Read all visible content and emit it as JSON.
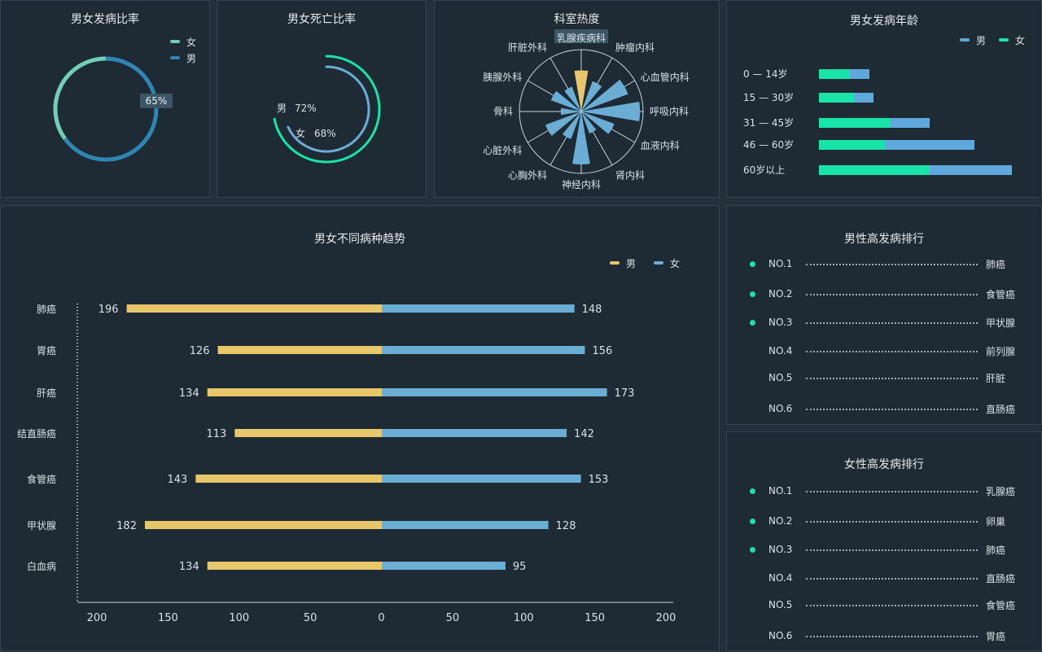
{
  "colors": {
    "male_bar": "#e8c66a",
    "female_bar": "#6aaed6",
    "teal": "#18e3a8",
    "blue": "#5fa8dc"
  },
  "ratio": {
    "title": "男女发病比率",
    "legend": [
      "女",
      "男"
    ],
    "label": "65%",
    "female_pct": 35,
    "male_pct": 65
  },
  "death": {
    "title": "男女死亡比率",
    "male_label": "男",
    "male_value": "72%",
    "male_pct": 72,
    "female_label": "女",
    "female_value": "68%",
    "female_pct": 68
  },
  "dept": {
    "title": "科室热度",
    "labels": [
      "乳腺疾病科",
      "肿瘤内科",
      "心血管内科",
      "呼吸内科",
      "血液内科",
      "肾内科",
      "神经内科",
      "心胸外科",
      "心脏外科",
      "骨科",
      "胰腺外科",
      "肝脏外科"
    ],
    "values": [
      70,
      55,
      85,
      100,
      60,
      40,
      90,
      50,
      65,
      35,
      55,
      45
    ],
    "highlight": "乳腺疾病科"
  },
  "age": {
    "title": "男女发病年龄",
    "legend": [
      "男",
      "女"
    ],
    "categories": [
      "0 — 14岁",
      "15 — 30岁",
      "31 — 45岁",
      "46 — 60岁",
      "60岁以上"
    ],
    "female": [
      38,
      43,
      87,
      81,
      136
    ],
    "male": [
      62,
      67,
      136,
      191,
      237
    ],
    "max": 240
  },
  "chart_data": {
    "type": "bar",
    "title": "男女不同病种趋势",
    "legend": [
      "男",
      "女"
    ],
    "categories": [
      "肺癌",
      "胃癌",
      "肝癌",
      "结直肠癌",
      "食管癌",
      "甲状腺",
      "白血病"
    ],
    "series": [
      {
        "name": "男",
        "values": [
          196,
          126,
          134,
          113,
          143,
          182,
          134
        ]
      },
      {
        "name": "女",
        "values": [
          148,
          156,
          173,
          142,
          153,
          128,
          95
        ]
      }
    ],
    "xticks": [
      "200",
      "150",
      "100",
      "50",
      "0",
      "50",
      "100",
      "150",
      "200"
    ],
    "xlim": [
      -200,
      200
    ]
  },
  "male_rank": {
    "title": "男性高发病排行",
    "items": [
      {
        "no": "NO.1",
        "name": "肺癌",
        "dot": true
      },
      {
        "no": "NO.2",
        "name": "食管癌",
        "dot": true
      },
      {
        "no": "NO.3",
        "name": "甲状腺",
        "dot": true
      },
      {
        "no": "NO.4",
        "name": "前列腺",
        "dot": false
      },
      {
        "no": "NO.5",
        "name": "肝脏",
        "dot": false
      },
      {
        "no": "NO.6",
        "name": "直肠癌",
        "dot": false
      }
    ]
  },
  "female_rank": {
    "title": "女性高发病排行",
    "items": [
      {
        "no": "NO.1",
        "name": "乳腺癌",
        "dot": true
      },
      {
        "no": "NO.2",
        "name": "卵巢",
        "dot": true
      },
      {
        "no": "NO.3",
        "name": "肺癌",
        "dot": true
      },
      {
        "no": "NO.4",
        "name": "直肠癌",
        "dot": false
      },
      {
        "no": "NO.5",
        "name": "食管癌",
        "dot": false
      },
      {
        "no": "NO.6",
        "name": "胃癌",
        "dot": false
      }
    ]
  }
}
